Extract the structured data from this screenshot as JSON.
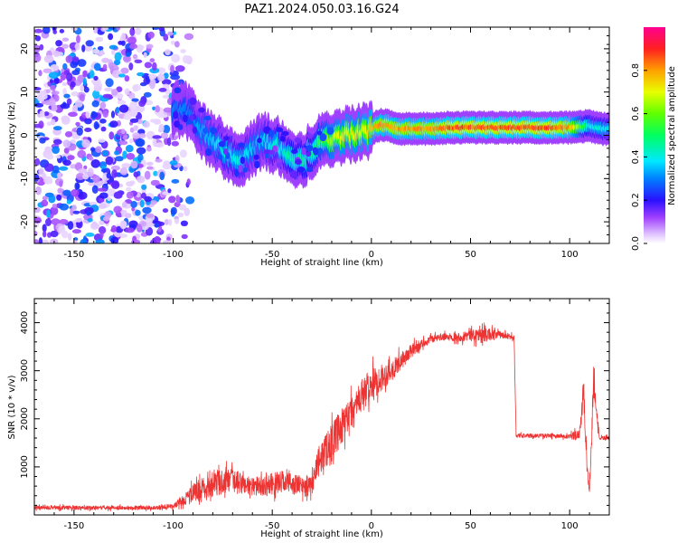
{
  "title": "PAZ1.2024.050.03.16.G24",
  "chart_data": [
    {
      "type": "heatmap",
      "xlabel": "Height of straight line (km)",
      "ylabel": "Frequency (Hz)",
      "xlim": [
        -170,
        120
      ],
      "ylim": [
        -25,
        25
      ],
      "xticks": [
        -150,
        -100,
        -50,
        0,
        50,
        100
      ],
      "yticks": [
        -20,
        -10,
        0,
        10,
        20
      ],
      "colorbar": {
        "label": "Normalized spectral amplitude",
        "ticks": [
          "0.0",
          "0.2",
          "0.4",
          "0.6",
          "0.8"
        ],
        "range": [
          0,
          1
        ],
        "colormap": "gist_rainbow_r"
      },
      "ridge": {
        "x": [
          -95,
          -90,
          -85,
          -80,
          -75,
          -70,
          -65,
          -60,
          -55,
          -50,
          -45,
          -40,
          -35,
          -30,
          -25,
          -20,
          -15,
          -10,
          -5,
          0,
          5,
          10,
          15,
          20,
          30,
          40,
          50,
          60,
          70,
          80,
          90,
          100,
          105,
          110,
          115,
          120
        ],
        "freq": [
          6,
          4,
          1,
          -1.5,
          -3,
          -4.5,
          -5.5,
          -3,
          -1.5,
          -2,
          -3,
          -5,
          -5.5,
          -3.5,
          -1.5,
          -0.5,
          0,
          0,
          0.5,
          1.5,
          2.5,
          2,
          1.5,
          1.5,
          1.5,
          1.8,
          1.8,
          1.8,
          1.8,
          1.8,
          1.8,
          1.8,
          2,
          2.2,
          1.5,
          1.5
        ],
        "amplitude": [
          0.3,
          0.3,
          0.35,
          0.35,
          0.4,
          0.4,
          0.4,
          0.35,
          0.35,
          0.4,
          0.4,
          0.45,
          0.45,
          0.45,
          0.55,
          0.65,
          0.7,
          0.7,
          0.7,
          0.75,
          0.8,
          0.8,
          0.8,
          0.8,
          0.8,
          0.85,
          0.85,
          0.85,
          0.85,
          0.85,
          0.85,
          0.8,
          0.6,
          0.4,
          0.4,
          0.4
        ]
      }
    },
    {
      "type": "line",
      "xlabel": "Height of straight line (km)",
      "ylabel": "SNR (10 * v/v)",
      "xlim": [
        -170,
        120
      ],
      "ylim": [
        0,
        4500
      ],
      "xticks": [
        -150,
        -100,
        -50,
        0,
        50,
        100
      ],
      "yticks": [
        1000,
        2000,
        3000,
        4000
      ],
      "color": "#ee3333",
      "series": [
        {
          "x": [
            -170,
            -150,
            -130,
            -110,
            -100,
            -95,
            -90,
            -85,
            -80,
            -75,
            -70,
            -65,
            -60,
            -55,
            -50,
            -45,
            -40,
            -35,
            -30,
            -28,
            -25,
            -20,
            -15,
            -10,
            -5,
            0,
            5,
            10,
            15,
            20,
            25,
            30,
            35,
            40,
            45,
            50,
            55,
            60,
            65,
            70,
            72,
            73,
            75,
            80,
            90,
            100,
            105,
            107,
            109,
            110,
            111,
            112,
            115,
            120
          ],
          "y": [
            150,
            150,
            150,
            150,
            180,
            300,
            450,
            550,
            650,
            700,
            700,
            650,
            600,
            600,
            650,
            700,
            650,
            600,
            600,
            1000,
            1250,
            1500,
            1800,
            2100,
            2450,
            2700,
            2850,
            3000,
            3200,
            3400,
            3550,
            3650,
            3700,
            3700,
            3700,
            3750,
            3750,
            3750,
            3750,
            3700,
            3700,
            1650,
            1650,
            1650,
            1650,
            1620,
            1700,
            2500,
            800,
            600,
            1500,
            2800,
            1600,
            1600
          ],
          "noise": [
            80,
            80,
            80,
            80,
            100,
            200,
            400,
            450,
            500,
            550,
            500,
            450,
            400,
            400,
            450,
            450,
            450,
            400,
            400,
            500,
            700,
            800,
            800,
            800,
            700,
            650,
            550,
            450,
            350,
            300,
            200,
            150,
            150,
            150,
            180,
            250,
            300,
            250,
            150,
            120,
            100,
            80,
            80,
            80,
            80,
            100,
            300,
            600,
            400,
            300,
            500,
            700,
            80,
            80
          ]
        }
      ]
    }
  ]
}
